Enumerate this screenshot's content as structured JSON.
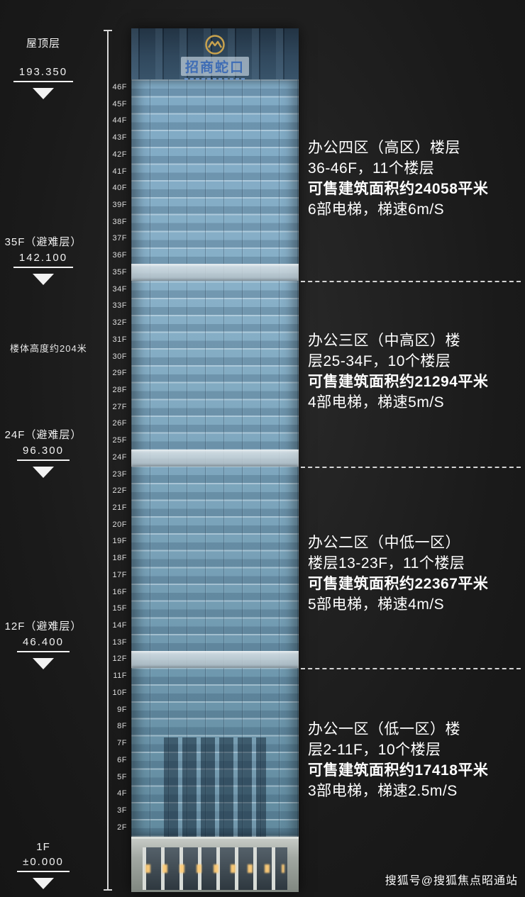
{
  "markers": [
    {
      "label": "屋顶层",
      "value": "193.350"
    },
    {
      "label": "35F（避难层）",
      "value": "142.100"
    },
    {
      "label": "24F（避难层）",
      "value": "96.300"
    },
    {
      "label": "12F（避难层）",
      "value": "46.400"
    },
    {
      "label": "1F",
      "value": "±0.000"
    }
  ],
  "building_height_note": "楼体高度约204米",
  "logo_text": "招商蛇口",
  "floors": [
    "46F",
    "45F",
    "44F",
    "43F",
    "42F",
    "41F",
    "40F",
    "39F",
    "38F",
    "37F",
    "36F",
    "35F",
    "34F",
    "33F",
    "32F",
    "31F",
    "30F",
    "29F",
    "28F",
    "27F",
    "26F",
    "25F",
    "24F",
    "23F",
    "22F",
    "21F",
    "20F",
    "19F",
    "18F",
    "17F",
    "16F",
    "15F",
    "14F",
    "13F",
    "12F",
    "11F",
    "10F",
    "9F",
    "8F",
    "7F",
    "6F",
    "5F",
    "4F",
    "3F",
    "2F"
  ],
  "zones": [
    {
      "line1": "办公四区（高区）楼层",
      "line2": "36-46F，11个楼层",
      "area": "可售建筑面积约24058平米",
      "elevators": "6部电梯，梯速6m/S"
    },
    {
      "line1": "办公三区（中高区）楼",
      "line2": "层25-34F，10个楼层",
      "area": "可售建筑面积约21294平米",
      "elevators": "4部电梯，梯速5m/S"
    },
    {
      "line1": "办公二区（中低一区）",
      "line2": "楼层13-23F，11个楼层",
      "area": "可售建筑面积约22367平米",
      "elevators": "5部电梯，梯速4m/S"
    },
    {
      "line1": "办公一区（低一区）楼",
      "line2": "层2-11F，10个楼层",
      "area": "可售建筑面积约17418平米",
      "elevators": "3部电梯，梯速2.5m/S"
    }
  ],
  "watermark": "搜狐号@搜狐焦点昭通站",
  "colors": {
    "accent_gold": "#c8a24e",
    "building_blue": "#7fa9c4",
    "background": "#1a1a1a"
  }
}
